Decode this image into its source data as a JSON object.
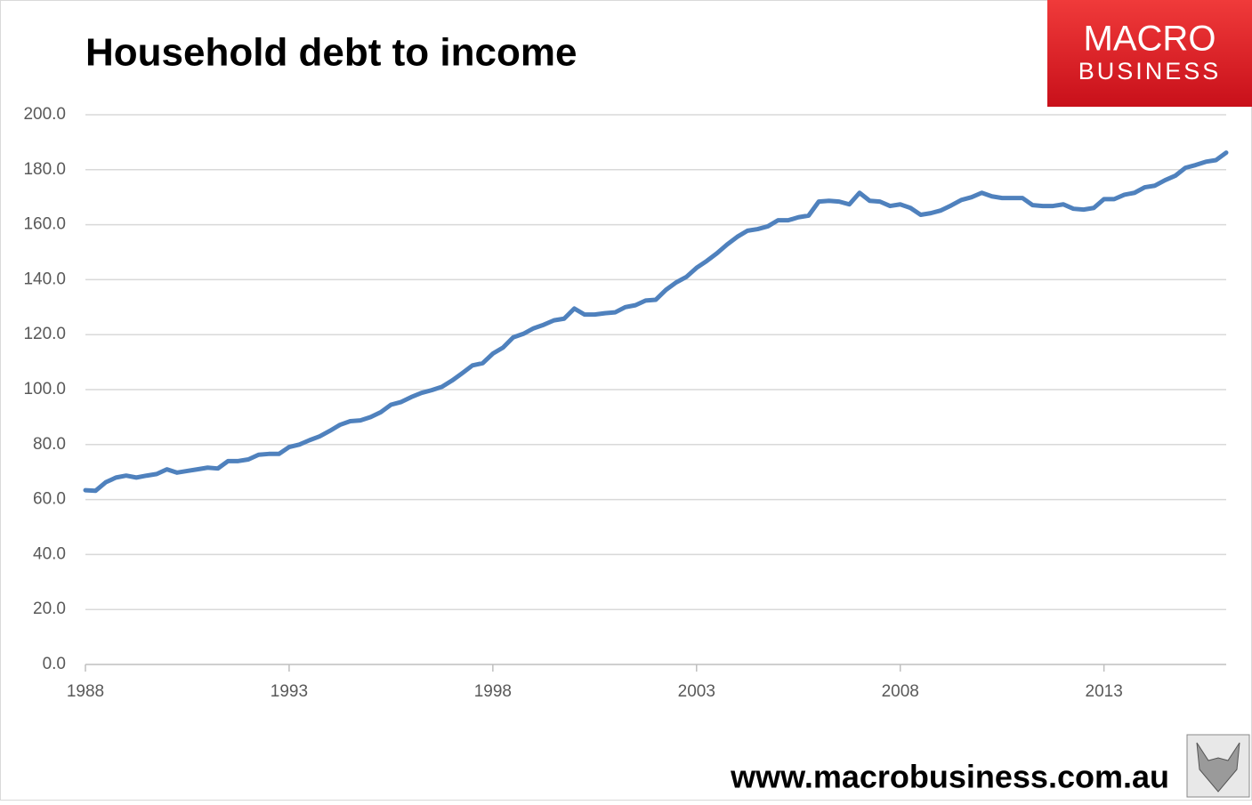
{
  "chart_data": {
    "type": "line",
    "title": "Household debt to income",
    "logo": {
      "line1": "MACRO",
      "line2": "BUSINESS"
    },
    "footer": "www.macrobusiness.com.au",
    "x": [
      1988,
      1988.25,
      1988.5,
      1988.75,
      1989,
      1989.25,
      1989.5,
      1989.75,
      1990,
      1990.25,
      1990.5,
      1990.75,
      1991,
      1991.25,
      1991.5,
      1991.75,
      1992,
      1992.25,
      1992.5,
      1992.75,
      1993,
      1993.25,
      1993.5,
      1993.75,
      1994,
      1994.25,
      1994.5,
      1994.75,
      1995,
      1995.25,
      1995.5,
      1995.75,
      1996,
      1996.25,
      1996.5,
      1996.75,
      1997,
      1997.25,
      1997.5,
      1997.75,
      1998,
      1998.25,
      1998.5,
      1998.75,
      1999,
      1999.25,
      1999.5,
      1999.75,
      2000,
      2000.25,
      2000.5,
      2000.75,
      2001,
      2001.25,
      2001.5,
      2001.75,
      2002,
      2002.25,
      2002.5,
      2002.75,
      2003,
      2003.25,
      2003.5,
      2003.75,
      2004,
      2004.25,
      2004.5,
      2004.75,
      2005,
      2005.25,
      2005.5,
      2005.75,
      2006,
      2006.25,
      2006.5,
      2006.75,
      2007,
      2007.25,
      2007.5,
      2007.75,
      2008,
      2008.25,
      2008.5,
      2008.75,
      2009,
      2009.25,
      2009.5,
      2009.75,
      2010,
      2010.25,
      2010.5,
      2010.75,
      2011,
      2011.25,
      2011.5,
      2011.75,
      2012,
      2012.25,
      2012.5,
      2012.75,
      2013,
      2013.25,
      2013.5,
      2013.75,
      2014,
      2014.25,
      2014.5,
      2014.75,
      2015,
      2015.25,
      2015.5,
      2015.75,
      2016
    ],
    "series": [
      {
        "name": "Household debt to income",
        "color": "#4f81bd",
        "values": [
          63.4,
          63.2,
          66.3,
          68,
          68.7,
          68,
          68.7,
          69.3,
          71,
          69.8,
          70.4,
          71,
          71.6,
          71.3,
          74,
          74,
          74.6,
          76.3,
          76.6,
          76.6,
          79.1,
          80,
          81.6,
          83,
          85,
          87.2,
          88.5,
          88.8,
          90,
          91.8,
          94.5,
          95.5,
          97.3,
          98.8,
          99.8,
          101,
          103.3,
          106,
          108.8,
          109.6,
          113.1,
          115.3,
          119,
          120.3,
          122.3,
          123.6,
          125.2,
          125.8,
          129.5,
          127.3,
          127.3,
          127.8,
          128.1,
          130,
          130.7,
          132.4,
          132.7,
          136.3,
          139,
          141,
          144.3,
          146.8,
          149.6,
          152.8,
          155.6,
          157.8,
          158.4,
          159.4,
          161.6,
          161.6,
          162.7,
          163.3,
          168.4,
          168.7,
          168.4,
          167.4,
          171.6,
          168.7,
          168.4,
          166.8,
          167.4,
          166.1,
          163.6,
          164.2,
          165.2,
          167,
          169,
          170,
          171.6,
          170.3,
          169.7,
          169.7,
          169.7,
          167.1,
          166.8,
          166.8,
          167.4,
          165.8,
          165.5,
          166.1,
          169.3,
          169.3,
          170.9,
          171.6,
          173.6,
          174.2,
          176.2,
          177.8,
          180.7,
          181.7,
          182.9,
          183.5,
          186.2
        ]
      }
    ],
    "xlim": [
      1988,
      2016
    ],
    "xticks": [
      1988,
      1993,
      1998,
      2003,
      2008,
      2013
    ],
    "ylim": [
      0,
      200
    ],
    "yticks": [
      {
        "value": 0,
        "label": "0.0"
      },
      {
        "value": 20,
        "label": "20.0"
      },
      {
        "value": 40,
        "label": "40.0"
      },
      {
        "value": 60,
        "label": "60.0"
      },
      {
        "value": 80,
        "label": "80.0"
      },
      {
        "value": 100,
        "label": "100.0"
      },
      {
        "value": 120,
        "label": "120.0"
      },
      {
        "value": 140,
        "label": "140.0"
      },
      {
        "value": 160,
        "label": "160.0"
      },
      {
        "value": 180,
        "label": "180.0"
      },
      {
        "value": 200,
        "label": "200.0"
      }
    ],
    "grid": true
  }
}
